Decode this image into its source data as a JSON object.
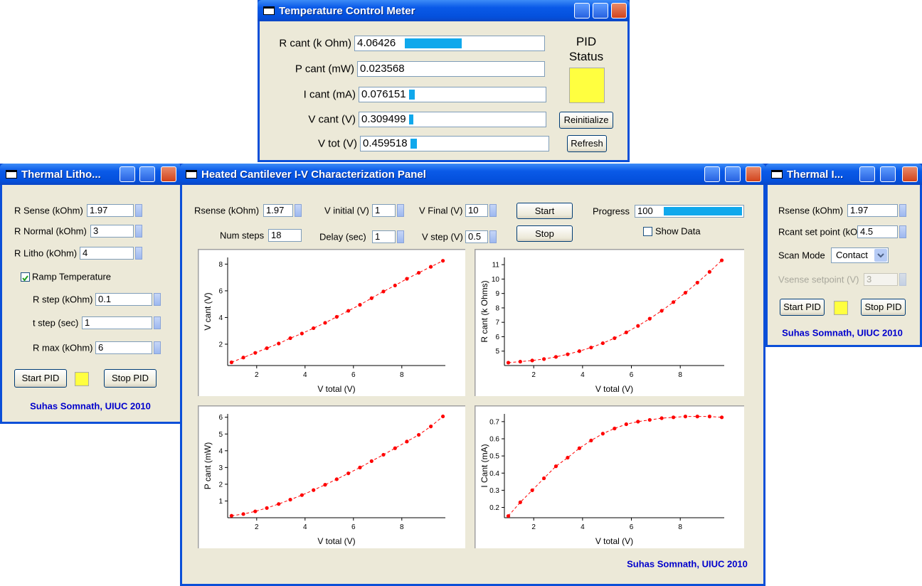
{
  "meter": {
    "title": "Temperature Control Meter",
    "fields": [
      {
        "label": "R cant (k Ohm)",
        "value": "4.06426"
      },
      {
        "label": "P cant (mW)",
        "value": "0.023568"
      },
      {
        "label": "I cant (mA)",
        "value": "0.076151"
      },
      {
        "label": "V cant (V)",
        "value": "0.309499"
      },
      {
        "label": "V tot (V)",
        "value": "0.459518"
      }
    ],
    "pid_status": "PID Status",
    "buttons": [
      "Reinitialize",
      "Refresh"
    ]
  },
  "litho": {
    "title": "Thermal Litho...",
    "fields": [
      {
        "label": "R Sense (kOhm)",
        "value": "1.97"
      },
      {
        "label": "R Normal (kOhm)",
        "value": "3"
      },
      {
        "label": "R Litho (kOhm)",
        "value": "4"
      }
    ],
    "ramp_checkbox": "Ramp Temperature",
    "ramp_fields": [
      {
        "label": "R step (kOhm)",
        "value": "0.1"
      },
      {
        "label": "t step (sec)",
        "value": "1"
      },
      {
        "label": "R max (kOhm)",
        "value": "6"
      }
    ],
    "buttons": [
      "Start PID",
      "Stop PID"
    ],
    "credit": "Suhas Somnath, UIUC 2010"
  },
  "pid": {
    "title": "Thermal I...",
    "fields": [
      {
        "label": "Rsense (kOhm)",
        "value": "1.97"
      },
      {
        "label": "Rcant set point (kOhm)",
        "value": "4.5"
      }
    ],
    "scan_mode_label": "Scan Mode",
    "scan_mode": "Contact",
    "vsense_label": "Vsense setpoint (V)",
    "vsense": "3",
    "buttons": [
      "Start PID",
      "Stop PID"
    ],
    "credit": "Suhas Somnath, UIUC 2010"
  },
  "panel": {
    "title": "Heated Cantilever I-V Characterization Panel",
    "fields": [
      {
        "label": "Rsense (kOhm)",
        "value": "1.97"
      },
      {
        "label": "Num steps",
        "value": "18"
      },
      {
        "label": "V initial (V)",
        "value": "1"
      },
      {
        "label": "Delay (sec)",
        "value": "1"
      },
      {
        "label": "V Final (V)",
        "value": "10"
      },
      {
        "label": "V step (V)",
        "value": "0.5"
      }
    ],
    "buttons": [
      "Start",
      "Stop"
    ],
    "progress_label": "Progress",
    "progress": "100",
    "show_data": "Show Data",
    "credit": "Suhas Somnath, UIUC 2010",
    "charts": [
      {
        "type": "line",
        "x_label": "V total (V)",
        "y_label": "V cant (V)",
        "color": "#ff0000",
        "x": [
          0.96,
          1.45,
          1.94,
          2.42,
          2.91,
          3.39,
          3.87,
          4.35,
          4.83,
          5.31,
          5.79,
          6.27,
          6.75,
          7.24,
          7.72,
          8.21,
          8.7,
          9.2,
          9.7
        ],
        "values": [
          0.64,
          1.0,
          1.35,
          1.7,
          2.05,
          2.45,
          2.8,
          3.2,
          3.6,
          4.05,
          4.5,
          4.95,
          5.45,
          5.95,
          6.4,
          6.9,
          7.35,
          7.8,
          8.25
        ],
        "xlim": [
          0.8,
          9.8
        ],
        "xticks": [
          2,
          4,
          6,
          8
        ],
        "ylim": [
          0.4,
          8.5
        ],
        "yticks": [
          2,
          4,
          6,
          8
        ]
      },
      {
        "type": "line",
        "x_label": "V total (V)",
        "y_label": "R cant (k Ohms)",
        "color": "#ff0000",
        "x": [
          0.96,
          1.45,
          1.94,
          2.42,
          2.91,
          3.39,
          3.87,
          4.35,
          4.83,
          5.31,
          5.79,
          6.27,
          6.75,
          7.24,
          7.72,
          8.21,
          8.7,
          9.2,
          9.7
        ],
        "values": [
          4.2,
          4.27,
          4.35,
          4.45,
          4.6,
          4.78,
          5.0,
          5.25,
          5.55,
          5.9,
          6.3,
          6.75,
          7.25,
          7.8,
          8.4,
          9.05,
          9.75,
          10.5,
          11.3
        ],
        "xlim": [
          0.8,
          9.8
        ],
        "xticks": [
          2,
          4,
          6,
          8
        ],
        "ylim": [
          4,
          11.5
        ],
        "yticks": [
          5,
          6,
          7,
          8,
          9,
          10,
          11
        ]
      },
      {
        "type": "line",
        "x_label": "V total (V)",
        "y_label": "P cant (mW)",
        "color": "#ff0000",
        "x": [
          0.96,
          1.45,
          1.94,
          2.42,
          2.91,
          3.39,
          3.87,
          4.35,
          4.83,
          5.31,
          5.79,
          6.27,
          6.75,
          7.24,
          7.72,
          8.21,
          8.7,
          9.2,
          9.7
        ],
        "values": [
          0.12,
          0.22,
          0.38,
          0.58,
          0.82,
          1.08,
          1.35,
          1.65,
          1.97,
          2.3,
          2.65,
          3.0,
          3.38,
          3.76,
          4.15,
          4.55,
          4.95,
          5.45,
          6.05
        ],
        "xlim": [
          0.8,
          9.8
        ],
        "xticks": [
          2,
          4,
          6,
          8
        ],
        "ylim": [
          0,
          6.2
        ],
        "yticks": [
          1,
          2,
          3,
          4,
          5,
          6
        ]
      },
      {
        "type": "line",
        "x_label": "V total (V)",
        "y_label": "I Cant (mA)",
        "color": "#ff0000",
        "x": [
          0.96,
          1.45,
          1.94,
          2.42,
          2.91,
          3.39,
          3.87,
          4.35,
          4.83,
          5.31,
          5.79,
          6.27,
          6.75,
          7.24,
          7.72,
          8.21,
          8.7,
          9.2,
          9.7
        ],
        "values": [
          0.15,
          0.23,
          0.3,
          0.37,
          0.44,
          0.49,
          0.545,
          0.59,
          0.63,
          0.66,
          0.685,
          0.7,
          0.71,
          0.72,
          0.725,
          0.73,
          0.73,
          0.73,
          0.725
        ],
        "xlim": [
          0.8,
          9.8
        ],
        "xticks": [
          2,
          4,
          6,
          8
        ],
        "ylim": [
          0.14,
          0.745
        ],
        "yticks": [
          0.2,
          0.3,
          0.4,
          0.5,
          0.6,
          0.7
        ]
      }
    ]
  }
}
